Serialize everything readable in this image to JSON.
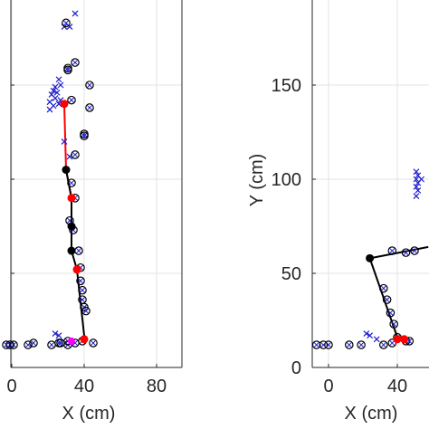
{
  "chart_data": [
    {
      "type": "scatter",
      "xlabel": "X (cm)",
      "ylabel": "",
      "xlim": [
        -6,
        90
      ],
      "ylim": [
        0,
        200
      ],
      "xticks": [
        0,
        40,
        80
      ],
      "xtick_labels": [
        "0",
        "40",
        "80"
      ],
      "yticks": [
        0,
        50,
        100,
        150,
        200
      ],
      "ytick_labels": [],
      "grid": true,
      "colors": {
        "cross": "#1f1fcc",
        "circle_marker": "#1f1fcc",
        "joint_black": "#000000",
        "joint_red": "#ff0000",
        "pink": "#ff00ff",
        "grid": "#e3e3e3"
      },
      "series": [
        {
          "kind": "cross",
          "points": [
            [
              35,
              188
            ],
            [
              32,
              181
            ],
            [
              29,
              181
            ],
            [
              26,
              153
            ],
            [
              27,
              150
            ],
            [
              24,
              149
            ],
            [
              23,
              147
            ],
            [
              25,
              146
            ],
            [
              22,
              145
            ],
            [
              24,
              143
            ],
            [
              27,
              142
            ],
            [
              21,
              141
            ],
            [
              26,
              140
            ],
            [
              23,
              139
            ],
            [
              21,
              137
            ],
            [
              29,
              120
            ],
            [
              32,
              112
            ],
            [
              24,
              18
            ],
            [
              26,
              17
            ]
          ]
        },
        {
          "kind": "circle",
          "points": [
            [
              35,
              162
            ],
            [
              31,
              159
            ],
            [
              43,
              150
            ],
            [
              43,
              138
            ],
            [
              40,
              124
            ],
            [
              40,
              123
            ],
            [
              30,
              183
            ],
            [
              31,
              158
            ],
            [
              33,
              142
            ],
            [
              35,
              113
            ],
            [
              33,
              98
            ],
            [
              35,
              90
            ],
            [
              32,
              78
            ],
            [
              34,
              73
            ],
            [
              37,
              62
            ],
            [
              38,
              53
            ],
            [
              38,
              46
            ],
            [
              39,
              41
            ],
            [
              39,
              36
            ],
            [
              40,
              32
            ],
            [
              41,
              30
            ],
            [
              45,
              13
            ],
            [
              39,
              14
            ],
            [
              35,
              13
            ],
            [
              31,
              12
            ],
            [
              26,
              13
            ],
            [
              22,
              12
            ],
            [
              12,
              13
            ],
            [
              9,
              12
            ],
            [
              1,
              12
            ],
            [
              -1,
              12
            ],
            [
              -3,
              12
            ],
            [
              27,
              13
            ],
            [
              31,
              14
            ]
          ]
        },
        {
          "kind": "pose_line_red",
          "points": [
            [
              29,
              140
            ],
            [
              30,
              105
            ],
            [
              33,
              90
            ]
          ]
        },
        {
          "kind": "pose_line_black",
          "points": [
            [
              30,
              105
            ],
            [
              33,
              90
            ],
            [
              33,
              75
            ],
            [
              33,
              62
            ],
            [
              36,
              52
            ],
            [
              40,
              17
            ]
          ]
        },
        {
          "kind": "joint_red",
          "points": [
            [
              29,
              140
            ],
            [
              33,
              90
            ],
            [
              36,
              52
            ],
            [
              40,
              15
            ]
          ]
        },
        {
          "kind": "joint_black",
          "points": [
            [
              30,
              105
            ],
            [
              33,
              62
            ],
            [
              33,
              75
            ]
          ]
        },
        {
          "kind": "pink",
          "points": [
            [
              33,
              14
            ]
          ]
        }
      ]
    },
    {
      "type": "scatter",
      "xlabel": "X (cm)",
      "ylabel": "Y (cm)",
      "xlim": [
        -12,
        60
      ],
      "ylim": [
        0,
        200
      ],
      "xticks": [
        0,
        40
      ],
      "xtick_labels": [
        "0",
        "40"
      ],
      "yticks": [
        0,
        50,
        100,
        150
      ],
      "ytick_labels": [
        "0",
        "50",
        "100",
        "150"
      ],
      "grid": true,
      "series": [
        {
          "kind": "cross",
          "points": [
            [
              51,
              104
            ],
            [
              52,
              102
            ],
            [
              51,
              100
            ],
            [
              52,
              98
            ],
            [
              51,
              96
            ],
            [
              52,
              94
            ],
            [
              54,
              100
            ],
            [
              51,
              91
            ],
            [
              22,
              18
            ],
            [
              24,
              17
            ],
            [
              28,
              15
            ]
          ]
        },
        {
          "kind": "circle",
          "points": [
            [
              37,
              62
            ],
            [
              45,
              61
            ],
            [
              50,
              62
            ],
            [
              32,
              42
            ],
            [
              34,
              36
            ],
            [
              36,
              29
            ],
            [
              38,
              23
            ],
            [
              40,
              16
            ],
            [
              37,
              13
            ],
            [
              32,
              12
            ],
            [
              19,
              12
            ],
            [
              12,
              12
            ],
            [
              0,
              12
            ],
            [
              -3,
              12
            ],
            [
              -7,
              12
            ],
            [
              45,
              14
            ],
            [
              47,
              14
            ]
          ]
        },
        {
          "kind": "pose_line_black",
          "points": [
            [
              24,
              58
            ],
            [
              58,
              64
            ],
            [
              24,
              58
            ],
            [
              40,
              16
            ]
          ]
        },
        {
          "kind": "joint_red",
          "points": [
            [
              40,
              15
            ],
            [
              44,
              15
            ]
          ]
        },
        {
          "kind": "joint_black",
          "points": [
            [
              24,
              58
            ]
          ]
        }
      ]
    }
  ]
}
